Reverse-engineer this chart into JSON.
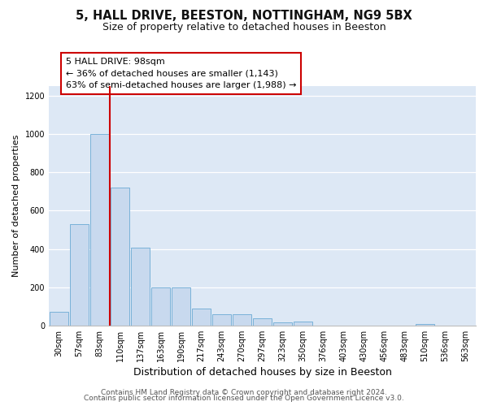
{
  "title": "5, HALL DRIVE, BEESTON, NOTTINGHAM, NG9 5BX",
  "subtitle": "Size of property relative to detached houses in Beeston",
  "xlabel": "Distribution of detached houses by size in Beeston",
  "ylabel": "Number of detached properties",
  "bar_labels": [
    "30sqm",
    "57sqm",
    "83sqm",
    "110sqm",
    "137sqm",
    "163sqm",
    "190sqm",
    "217sqm",
    "243sqm",
    "270sqm",
    "297sqm",
    "323sqm",
    "350sqm",
    "376sqm",
    "403sqm",
    "430sqm",
    "456sqm",
    "483sqm",
    "510sqm",
    "536sqm",
    "563sqm"
  ],
  "bar_values": [
    70,
    530,
    1000,
    720,
    405,
    197,
    197,
    90,
    60,
    57,
    38,
    15,
    20,
    0,
    0,
    0,
    0,
    0,
    8,
    0,
    0
  ],
  "bar_color": "#c8d9ee",
  "bar_edge_color": "#6aaad4",
  "vline_color": "#cc0000",
  "ylim": [
    0,
    1250
  ],
  "yticks": [
    0,
    200,
    400,
    600,
    800,
    1000,
    1200
  ],
  "annotation_title": "5 HALL DRIVE: 98sqm",
  "annotation_line1": "← 36% of detached houses are smaller (1,143)",
  "annotation_line2": "63% of semi-detached houses are larger (1,988) →",
  "annotation_box_facecolor": "#ffffff",
  "annotation_box_edgecolor": "#cc0000",
  "footer_line1": "Contains HM Land Registry data © Crown copyright and database right 2024.",
  "footer_line2": "Contains public sector information licensed under the Open Government Licence v3.0.",
  "fig_bg_color": "#ffffff",
  "plot_bg_color": "#dde8f5",
  "title_fontsize": 10.5,
  "subtitle_fontsize": 9,
  "xlabel_fontsize": 9,
  "ylabel_fontsize": 8,
  "tick_fontsize": 7,
  "annotation_fontsize": 8,
  "footer_fontsize": 6.5
}
